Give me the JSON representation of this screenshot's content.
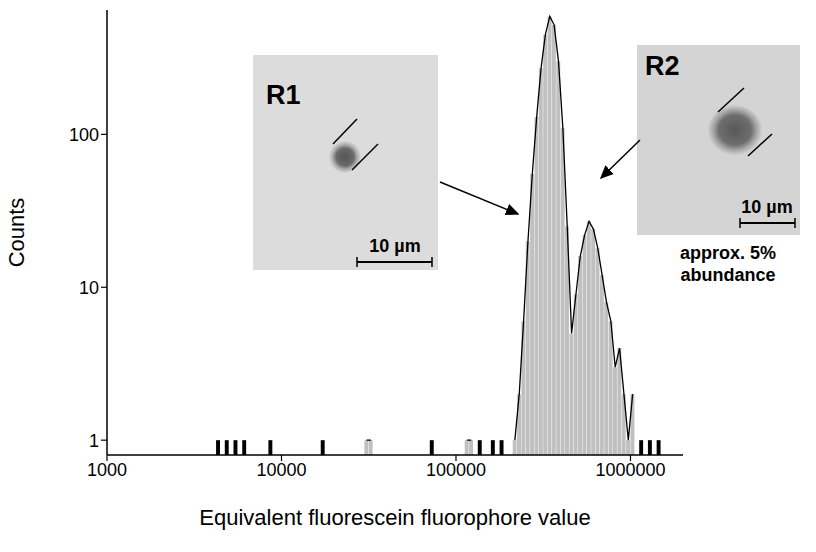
{
  "chart_data": {
    "type": "histogram",
    "log": true,
    "grid": false,
    "color": "#c0c0c0",
    "xlabel": "Equivalent fluorescein fluorophore value",
    "ylabel": "Counts",
    "xlim": [
      1000,
      2000000
    ],
    "xticks": [
      1000,
      10000,
      100000,
      1000000
    ],
    "ylim": [
      0.8,
      650
    ],
    "yticks": [
      1,
      10,
      100
    ],
    "bins": [
      3981,
      4217,
      4467,
      4732,
      5012,
      5309,
      5623,
      5957,
      6310,
      6683,
      7079,
      7499,
      7943,
      8414,
      8913,
      9441,
      10000,
      10593,
      11220,
      11885,
      12589,
      13335,
      14125,
      14962,
      15849,
      16788,
      17783,
      18836,
      19953,
      21135,
      22387,
      23714,
      25119,
      26607,
      28184,
      29854,
      31623,
      33497,
      35481,
      37584,
      39811,
      42170,
      44668,
      47315,
      50119,
      53088,
      56234,
      59566,
      63096,
      66834,
      70795,
      74989,
      79433,
      84140,
      89125,
      94406,
      100000,
      105925,
      112202,
      118850,
      125893,
      133352,
      141254,
      149624,
      158489,
      167880,
      177828,
      188365,
      199526,
      211349,
      223872,
      237137,
      251189,
      266073,
      281838,
      298538,
      316228,
      334965,
      354813,
      375837,
      398107,
      421697,
      446684,
      473151,
      501187,
      530884,
      562341,
      595662,
      630957,
      668344,
      707946,
      749894,
      794328,
      841395,
      891251,
      944061,
      1000000,
      1059254,
      1122018,
      1188502,
      1258925,
      1333521,
      1412538,
      1496236,
      1584893
    ],
    "counts": [
      0,
      1,
      0,
      1,
      0,
      1,
      0,
      1,
      0,
      0,
      0,
      0,
      0,
      1,
      0,
      0,
      0,
      0,
      0,
      0,
      0,
      0,
      0,
      0,
      0,
      1,
      0,
      0,
      0,
      0,
      0,
      0,
      0,
      0,
      0,
      1,
      1,
      0,
      0,
      0,
      0,
      0,
      0,
      0,
      0,
      0,
      0,
      0,
      0,
      0,
      1,
      0,
      0,
      0,
      0,
      0,
      0,
      0,
      1,
      1,
      0,
      1,
      0,
      0,
      1,
      0,
      1,
      0,
      0,
      1,
      2,
      6,
      20,
      55,
      130,
      270,
      450,
      590,
      520,
      300,
      110,
      25,
      5,
      9,
      16,
      22,
      27,
      24,
      18,
      12,
      8,
      6,
      3,
      4,
      2,
      1,
      2,
      0,
      1,
      0,
      1,
      0,
      1,
      0
    ],
    "annotations": [
      {
        "text": "R1",
        "scale_bar": "10 µm"
      },
      {
        "text": "R2",
        "scale_bar": "10 µm",
        "caption": "approx. 5% abundance"
      }
    ]
  }
}
